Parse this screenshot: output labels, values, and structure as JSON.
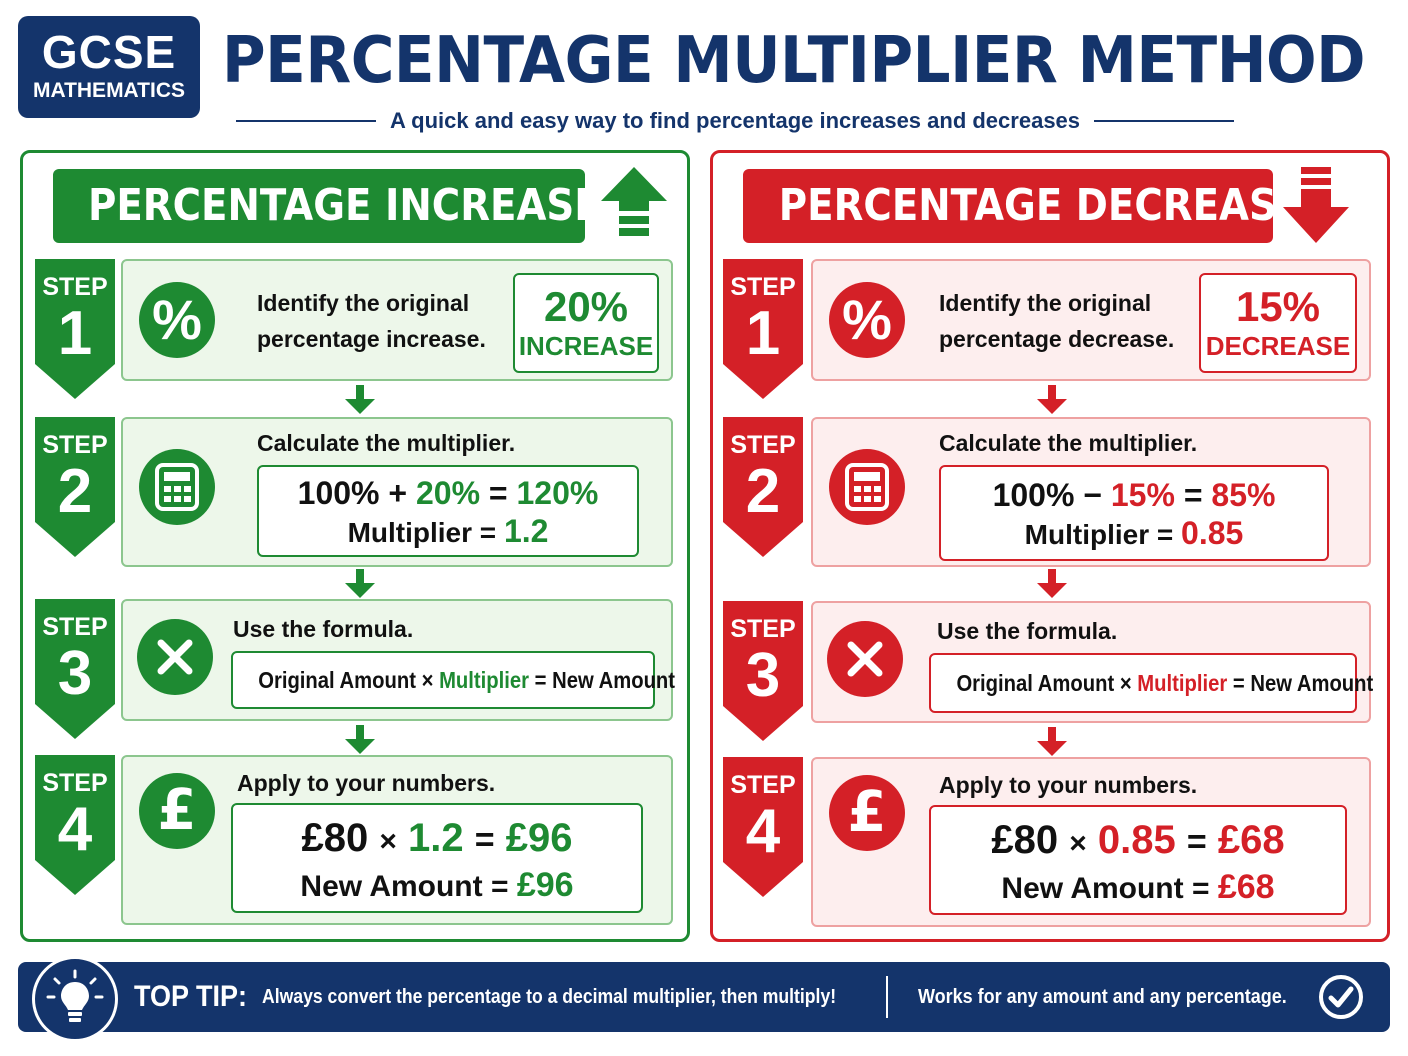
{
  "header": {
    "badge_line1": "GCSE",
    "badge_line2": "MATHEMATICS",
    "title": "PERCENTAGE MULTIPLIER METHOD",
    "subtitle": "A quick and easy way to find percentage increases and decreases"
  },
  "colors": {
    "navy": "#14346b",
    "green": "#1e8a32",
    "red": "#d42027"
  },
  "increase": {
    "banner": "PERCENTAGE INCREASE",
    "direction_icon": "arrow-up-icon",
    "steps": [
      {
        "label": "STEP",
        "number": "1",
        "icon": "percent-icon",
        "text_line1": "Identify the original",
        "text_line2": "percentage increase.",
        "box_value": "20%",
        "box_label": "INCREASE"
      },
      {
        "label": "STEP",
        "number": "2",
        "icon": "calculator-icon",
        "text": "Calculate the multiplier.",
        "eq_a": "100%",
        "eq_op": "+",
        "eq_b": "20%",
        "eq_eq": "=",
        "eq_c": "120%",
        "mult_label": "Multiplier",
        "mult_eq": "=",
        "mult_value": "1.2"
      },
      {
        "label": "STEP",
        "number": "3",
        "icon": "multiply-icon",
        "text": "Use the formula.",
        "f_a": "Original Amount",
        "f_times": "×",
        "f_b": "Multiplier",
        "f_eq": "=",
        "f_c": "New Amount"
      },
      {
        "label": "STEP",
        "number": "4",
        "icon": "pound-icon",
        "text": "Apply to your numbers.",
        "a_amount": "£80",
        "a_times": "×",
        "a_mult": "1.2",
        "a_eq": "=",
        "a_result": "£96",
        "n_label": "New Amount",
        "n_eq": "=",
        "n_value": "£96"
      }
    ]
  },
  "decrease": {
    "banner": "PERCENTAGE DECREASE",
    "direction_icon": "arrow-down-icon",
    "steps": [
      {
        "label": "STEP",
        "number": "1",
        "icon": "percent-icon",
        "text_line1": "Identify the original",
        "text_line2": "percentage decrease.",
        "box_value": "15%",
        "box_label": "DECREASE"
      },
      {
        "label": "STEP",
        "number": "2",
        "icon": "calculator-icon",
        "text": "Calculate the multiplier.",
        "eq_a": "100%",
        "eq_op": "−",
        "eq_b": "15%",
        "eq_eq": "=",
        "eq_c": "85%",
        "mult_label": "Multiplier",
        "mult_eq": "=",
        "mult_value": "0.85"
      },
      {
        "label": "STEP",
        "number": "3",
        "icon": "multiply-icon",
        "text": "Use the formula.",
        "f_a": "Original Amount",
        "f_times": "×",
        "f_b": "Multiplier",
        "f_eq": "=",
        "f_c": "New Amount"
      },
      {
        "label": "STEP",
        "number": "4",
        "icon": "pound-icon",
        "text": "Apply to your numbers.",
        "a_amount": "£80",
        "a_times": "×",
        "a_mult": "0.85",
        "a_eq": "=",
        "a_result": "£68",
        "n_label": "New Amount",
        "n_eq": "=",
        "n_value": "£68"
      }
    ]
  },
  "footer": {
    "label": "TOP TIP:",
    "tip": "Always convert the percentage to a decimal multiplier, then multiply!",
    "tip2": "Works for any amount and any percentage.",
    "left_icon": "lightbulb-icon",
    "right_icon": "check-circle-icon"
  }
}
